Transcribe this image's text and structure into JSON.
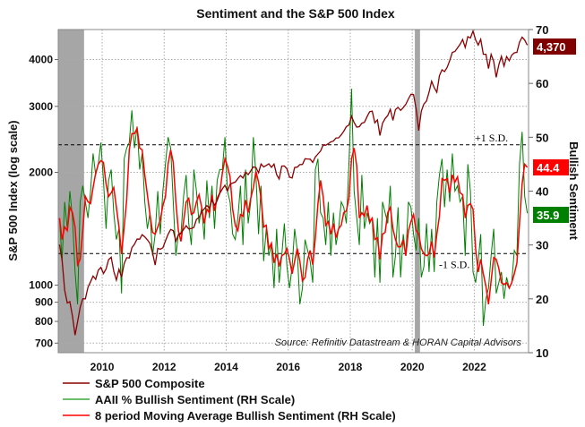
{
  "chart_data": {
    "type": "line",
    "title": "Sentiment and the S&P 500 Index",
    "left_axis": {
      "label": "S&P 500 Index (log scale)",
      "scale": "log",
      "ticks": [
        700,
        800,
        900,
        1000,
        2000,
        3000,
        4000
      ],
      "tick_labels": [
        "700",
        "800",
        "900",
        "1000",
        "2000",
        "3000",
        "4000"
      ],
      "range": [
        660,
        4810
      ]
    },
    "right_axis": {
      "label": "Bullish Sentiment",
      "scale": "linear",
      "ticks": [
        10,
        20,
        30,
        40,
        50,
        60,
        70
      ],
      "tick_labels": [
        "10",
        "20",
        "30",
        "40",
        "50",
        "60",
        "70"
      ],
      "range": [
        10,
        70
      ]
    },
    "x_axis": {
      "ticks": [
        2010,
        2012,
        2014,
        2016,
        2018,
        2020,
        2022
      ],
      "tick_labels": [
        "2010",
        "2012",
        "2014",
        "2016",
        "2018",
        "2020",
        "2022"
      ],
      "range": [
        "2008-08",
        "2023-10"
      ]
    },
    "grid": true,
    "legend_position": "bottom-left",
    "recessions": [
      [
        "2008-08",
        "2009-06"
      ],
      [
        "2020-02",
        "2020-04"
      ]
    ],
    "reference_lines": [
      {
        "label": "+1 S.D.",
        "value": 48.6
      },
      {
        "label": "-1 S.D.",
        "value": 28.4
      }
    ],
    "source": "Source: Refinitiv Datastream & HORAN Capital Advisors",
    "start": "2008-08",
    "frequency": "monthly",
    "series": [
      {
        "name": "S&P 500 Composite",
        "axis": "left",
        "color": "#8b0000",
        "last_label": "4,370",
        "values": [
          1283,
          1166,
          969,
          896,
          903,
          826,
          735,
          798,
          873,
          919,
          919,
          987,
          1021,
          1057,
          1036,
          1096,
          1115,
          1074,
          1104,
          1169,
          1187,
          1089,
          1031,
          1102,
          1049,
          1141,
          1183,
          1181,
          1258,
          1286,
          1327,
          1326,
          1364,
          1345,
          1321,
          1292,
          1219,
          1131,
          1253,
          1247,
          1258,
          1312,
          1366,
          1408,
          1398,
          1310,
          1362,
          1379,
          1407,
          1441,
          1412,
          1416,
          1426,
          1498,
          1515,
          1569,
          1598,
          1631,
          1606,
          1686,
          1633,
          1682,
          1757,
          1806,
          1848,
          1783,
          1859,
          1872,
          1884,
          1924,
          1960,
          1931,
          2003,
          1972,
          2018,
          2068,
          2059,
          1995,
          2105,
          2068,
          2086,
          2107,
          2063,
          2104,
          1972,
          1920,
          2079,
          2080,
          2044,
          1940,
          1932,
          2060,
          2065,
          2097,
          2099,
          2174,
          2171,
          2168,
          2126,
          2199,
          2239,
          2279,
          2364,
          2363,
          2384,
          2412,
          2423,
          2470,
          2472,
          2519,
          2575,
          2648,
          2674,
          2824,
          2714,
          2641,
          2648,
          2705,
          2718,
          2816,
          2902,
          2914,
          2711,
          2760,
          2507,
          2704,
          2784,
          2834,
          2946,
          2752,
          2942,
          2980,
          2926,
          2977,
          3038,
          3141,
          3231,
          3226,
          2954,
          2585,
          2912,
          3044,
          3100,
          3271,
          3500,
          3363,
          3270,
          3622,
          3756,
          3714,
          3811,
          3973,
          4181,
          4204,
          4298,
          4395,
          4523,
          4308,
          4605,
          4567,
          4766,
          4516,
          4374,
          4530,
          4132,
          4132,
          3785,
          4130,
          3955,
          3586,
          3872,
          4080,
          3840,
          4077,
          3970,
          4109,
          4169,
          4180,
          4450,
          4589,
          4508,
          4370
        ]
      },
      {
        "name": "AAII % Bullish Sentiment (RH Scale)",
        "axis": "right",
        "color": "#008000",
        "last_label": "35.9",
        "values": [
          35,
          27,
          38,
          33,
          40,
          35,
          25,
          19,
          38,
          41,
          38,
          35,
          40,
          47,
          43,
          45,
          49,
          42,
          33,
          42,
          44,
          36,
          31,
          33,
          21,
          46,
          48,
          49,
          55,
          48,
          52,
          44,
          47,
          38,
          33,
          36,
          28,
          32,
          40,
          32,
          40,
          45,
          50,
          48,
          38,
          28,
          32,
          32,
          39,
          43,
          34,
          30,
          44,
          40,
          34,
          37,
          31,
          42,
          35,
          41,
          33,
          42,
          44,
          44,
          50,
          40,
          38,
          32,
          31,
          35,
          41,
          30,
          44,
          34,
          38,
          50,
          43,
          32,
          41,
          27,
          33,
          28,
          30,
          22,
          33,
          23,
          28,
          34,
          26,
          22,
          26,
          33,
          29,
          19,
          22,
          31,
          29,
          27,
          23,
          44,
          46,
          36,
          35,
          30,
          38,
          28,
          36,
          30,
          33,
          38,
          37,
          34,
          45,
          59,
          40,
          35,
          30,
          43,
          33,
          36,
          34,
          35,
          24,
          35,
          23,
          38,
          36,
          34,
          41,
          24,
          28,
          37,
          24,
          32,
          28,
          38,
          37,
          32,
          29,
          35,
          24,
          26,
          34,
          25,
          33,
          25,
          38,
          43,
          46,
          37,
          44,
          38,
          47,
          40,
          41,
          38,
          39,
          28,
          45,
          40,
          25,
          23,
          27,
          32,
          15,
          20,
          22,
          28,
          33,
          21,
          23,
          25,
          20,
          24,
          22,
          23,
          29,
          28,
          45,
          51,
          39,
          35.9
        ]
      },
      {
        "name": "8 period Moving Average Bullish Sentiment (RH Scale)",
        "axis": "right",
        "color": "#ff0000",
        "last_label": "44.4"
      }
    ]
  }
}
